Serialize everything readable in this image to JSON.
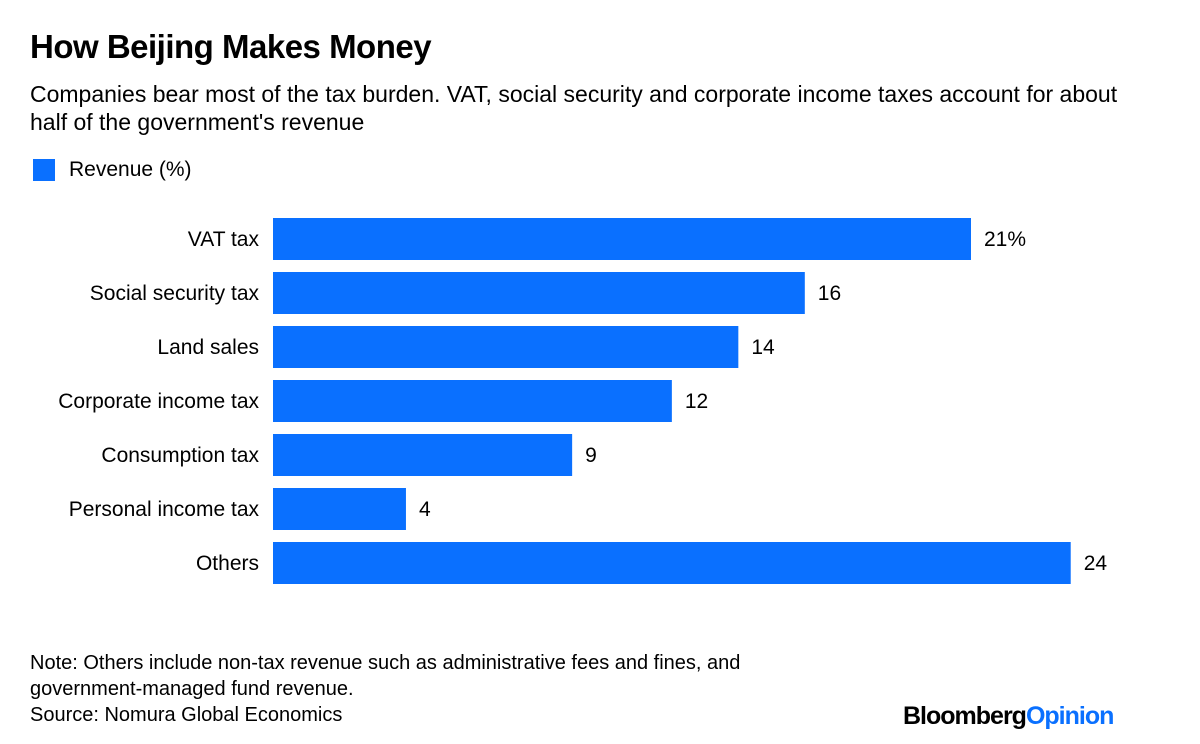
{
  "title": "How Beijing Makes Money",
  "subtitle": "Companies bear most of the tax burden. VAT, social security and corporate income taxes account for about half of the government's revenue",
  "colors": {
    "bar": "#0a70ff",
    "logo_accent": "#0a70ff"
  },
  "chart_data": {
    "type": "bar",
    "orientation": "horizontal",
    "categories": [
      "VAT tax",
      "Social security tax",
      "Land sales",
      "Corporate income tax",
      "Consumption tax",
      "Personal income tax",
      "Others"
    ],
    "series": [
      {
        "name": "Revenue (%)",
        "values": [
          21,
          16,
          14,
          12,
          9,
          4,
          24
        ]
      }
    ],
    "data_labels": [
      "21%",
      "16",
      "14",
      "12",
      "9",
      "4",
      "24"
    ],
    "xlim": [
      0,
      24
    ],
    "grid": false,
    "legend_placement": "top-left"
  },
  "notes": {
    "note_line1": "Note: Others include non-tax revenue such as administrative fees and fines, and",
    "note_line2": "government-managed fund revenue.",
    "source": "Source: Nomura Global Economics"
  },
  "logo": {
    "part1": "Bloomberg",
    "part2": "Opinion"
  }
}
